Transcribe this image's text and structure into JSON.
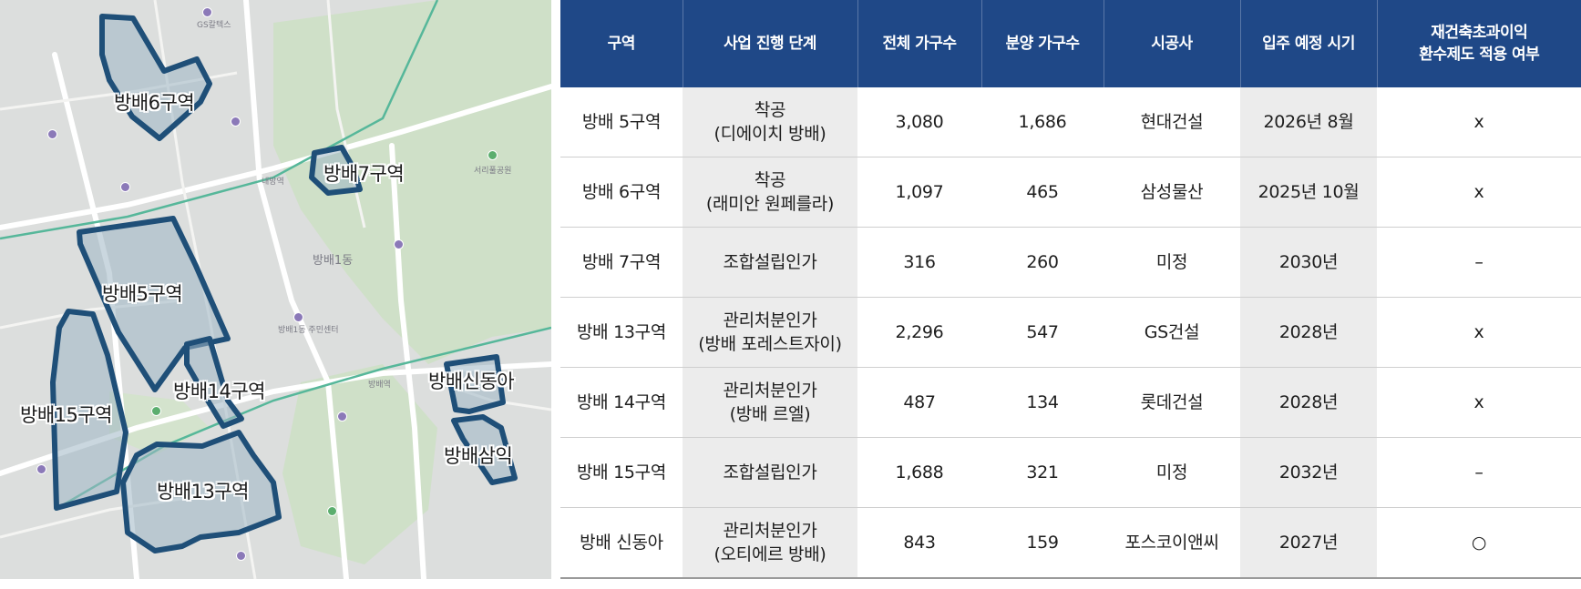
{
  "map": {
    "zone_labels": {
      "z6": "방배6구역",
      "z7": "방배7구역",
      "z5": "방배5구역",
      "z14": "방배14구역",
      "z15": "방배15구역",
      "z13": "방배13구역",
      "sindong": "방배신동아",
      "samik": "방배삼익"
    },
    "place_labels": {
      "gs": "GS칼텍스",
      "naebang": "내방역",
      "bangbae1": "방배1동",
      "bangbae_station": "방배역",
      "seoripul": "서리풀공원",
      "bangbae_center": "방배1동 주민센터"
    },
    "colors": {
      "zone_stroke": "#1f4f78",
      "zone_fill": "#9fb6c4",
      "green_area": "#c9dcc2",
      "subway_line": "#56b79a"
    }
  },
  "table": {
    "headers": [
      "구역",
      "사업 진행 단계",
      "전체 가구수",
      "분양 가구수",
      "시공사",
      "입주 예정 시기",
      "재건축초과이익\n환수제도 적용 여부"
    ],
    "rows": [
      {
        "zone": "방배 5구역",
        "stage": "착공\n(디에이치  방배)",
        "total": "3,080",
        "sale": "1,686",
        "builder": "현대건설",
        "movein": "2026년 8월",
        "applies": "x"
      },
      {
        "zone": "방배 6구역",
        "stage": "착공\n(래미안 원페를라)",
        "total": "1,097",
        "sale": "465",
        "builder": "삼성물산",
        "movein": "2025년 10월",
        "applies": "x"
      },
      {
        "zone": "방배 7구역",
        "stage": "조합설립인가",
        "total": "316",
        "sale": "260",
        "builder": "미정",
        "movein": "2030년",
        "applies": "–"
      },
      {
        "zone": "방배 13구역",
        "stage": "관리처분인가\n(방배 포레스트자이)",
        "total": "2,296",
        "sale": "547",
        "builder": "GS건설",
        "movein": "2028년",
        "applies": "x"
      },
      {
        "zone": "방배 14구역",
        "stage": "관리처분인가\n(방배 르엘)",
        "total": "487",
        "sale": "134",
        "builder": "롯데건설",
        "movein": "2028년",
        "applies": "x"
      },
      {
        "zone": "방배 15구역",
        "stage": "조합설립인가",
        "total": "1,688",
        "sale": "321",
        "builder": "미정",
        "movein": "2032년",
        "applies": "–"
      },
      {
        "zone": "방배 신동아",
        "stage": "관리처분인가\n(오티에르 방배)",
        "total": "843",
        "sale": "159",
        "builder": "포스코이앤씨",
        "movein": "2027년",
        "applies": "○"
      }
    ]
  }
}
